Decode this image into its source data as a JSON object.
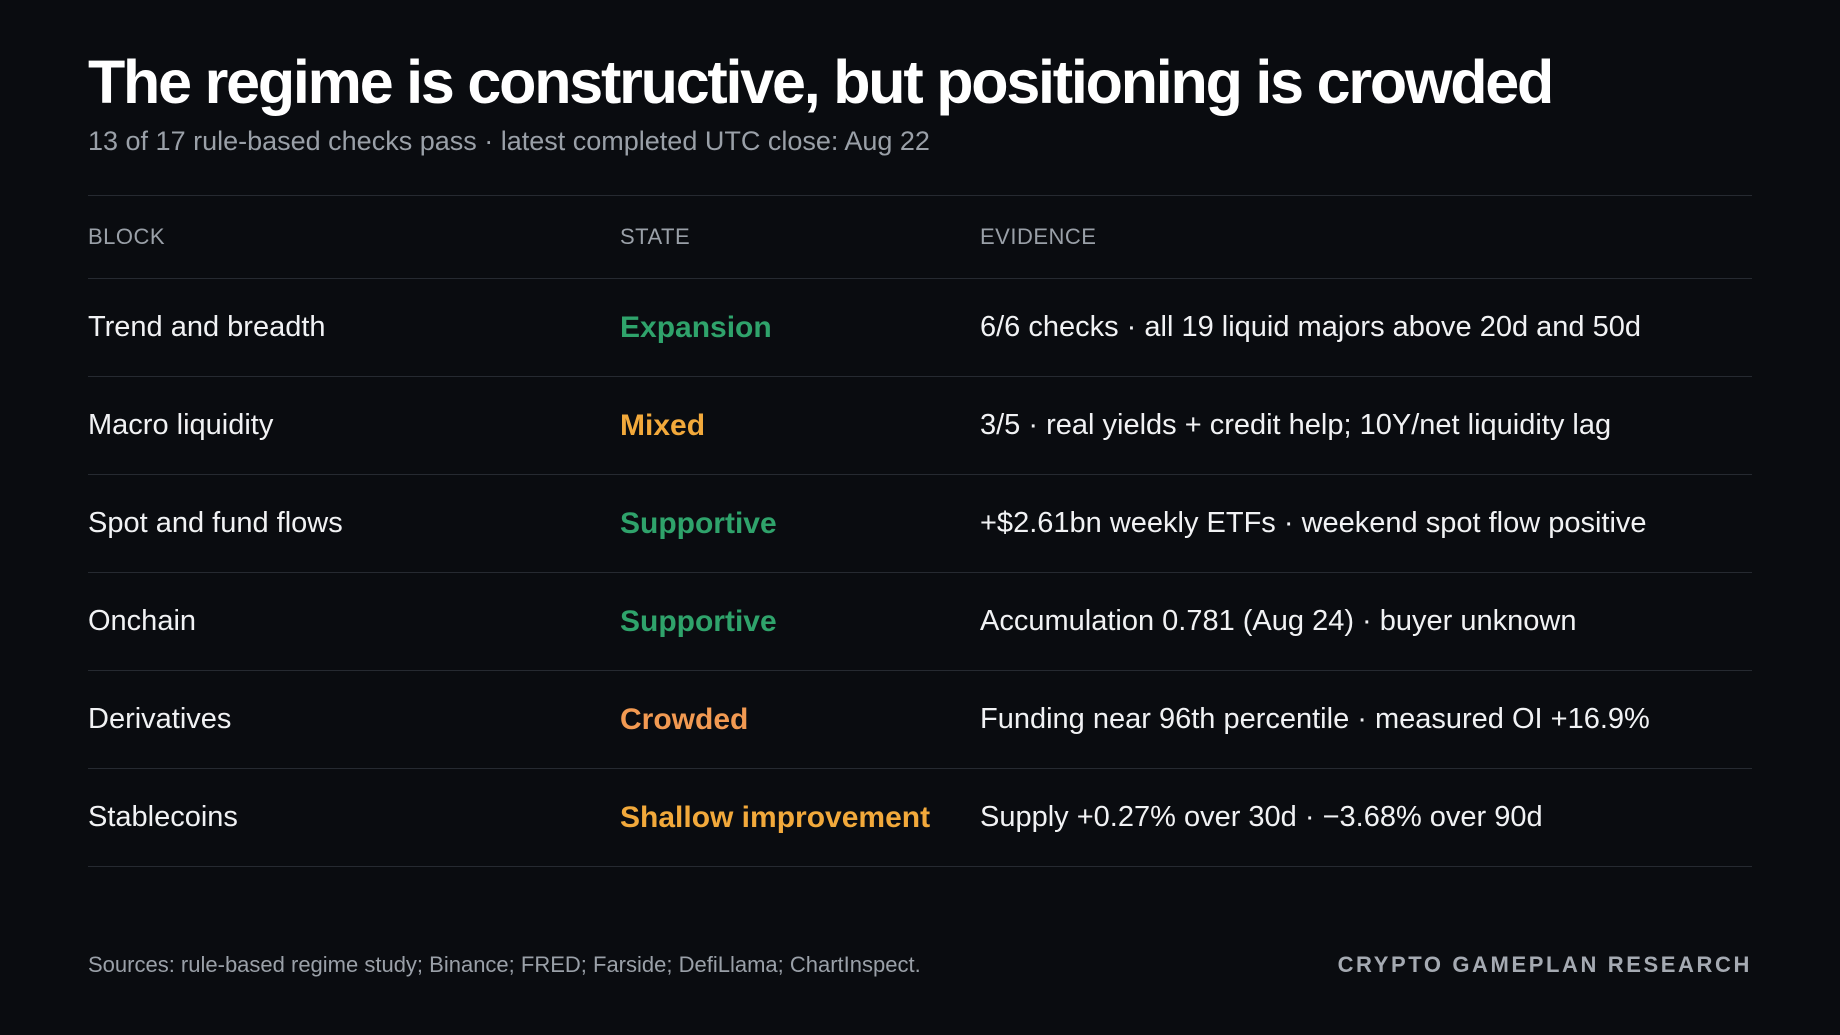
{
  "header": {
    "title": "The regime is constructive, but positioning is crowded",
    "subtitle": "13 of 17 rule-based checks pass · latest completed UTC close: Aug 22"
  },
  "table": {
    "columns": [
      "BLOCK",
      "STATE",
      "EVIDENCE"
    ],
    "rows": [
      {
        "block": "Trend and breadth",
        "state": "Expansion",
        "state_color": "#2fa36b",
        "evidence": "6/6 checks · all 19 liquid majors above 20d and 50d"
      },
      {
        "block": "Macro liquidity",
        "state": "Mixed",
        "state_color": "#f2a93b",
        "evidence": "3/5 · real yields + credit help; 10Y/net liquidity lag"
      },
      {
        "block": "Spot and fund flows",
        "state": "Supportive",
        "state_color": "#2fa36b",
        "evidence": "+$2.61bn weekly ETFs · weekend spot flow positive"
      },
      {
        "block": "Onchain",
        "state": "Supportive",
        "state_color": "#2fa36b",
        "evidence": "Accumulation 0.781 (Aug 24) · buyer unknown"
      },
      {
        "block": "Derivatives",
        "state": "Crowded",
        "state_color": "#f29a52",
        "evidence": "Funding near 96th percentile · measured OI +16.9%"
      },
      {
        "block": "Stablecoins",
        "state": "Shallow improvement",
        "state_color": "#f2a93b",
        "evidence": "Supply +0.27% over 30d · −3.68% over 90d"
      }
    ]
  },
  "footer": {
    "sources": "Sources: rule-based regime study; Binance; FRED; Farside; DefiLlama; ChartInspect.",
    "brand": "CRYPTO GAMEPLAN RESEARCH"
  },
  "colors": {
    "background": "#0a0c10",
    "positive": "#2fa36b",
    "mixed": "#f2a93b",
    "crowded": "#f29a52"
  }
}
